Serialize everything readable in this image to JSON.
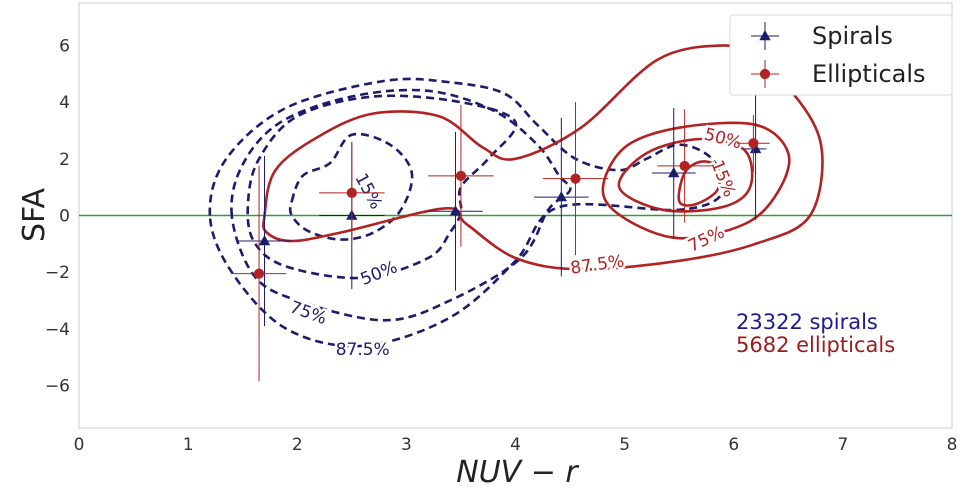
{
  "chart_data": {
    "type": "scatter",
    "xlabel": "NUV − r",
    "ylabel": "SFA",
    "xlim": [
      0,
      8
    ],
    "ylim": [
      -7.5,
      7.5
    ],
    "xticks": [
      "0",
      "1",
      "2",
      "3",
      "4",
      "5",
      "6",
      "7",
      "8"
    ],
    "yticks": [
      "−6",
      "−4",
      "−2",
      "0",
      "2",
      "4",
      "6"
    ],
    "grid": false,
    "reference_line": {
      "y": 0,
      "color": "#3a9a3a"
    },
    "legend": {
      "position": "top-right",
      "entries": [
        {
          "label": "Spirals",
          "color": "#1c1c6b",
          "marker": "triangle"
        },
        {
          "label": "Ellipticals",
          "color": "#b22222",
          "marker": "circle"
        }
      ]
    },
    "series": [
      {
        "name": "Spirals",
        "color": "#1c1c6b",
        "marker": "triangle",
        "points": [
          {
            "x": 1.7,
            "y": -0.9,
            "xerr": 0.25,
            "yerr": 3.0
          },
          {
            "x": 2.5,
            "y": 0.0,
            "xerr": 0.3,
            "yerr": 2.6
          },
          {
            "x": 3.45,
            "y": 0.15,
            "xerr": 0.25,
            "yerr": 2.8
          },
          {
            "x": 4.42,
            "y": 0.65,
            "xerr": 0.25,
            "yerr": 2.8
          },
          {
            "x": 5.45,
            "y": 1.5,
            "xerr": 0.2,
            "yerr": 2.3
          },
          {
            "x": 6.2,
            "y": 2.35,
            "xerr": 0.1,
            "yerr": 2.5
          }
        ]
      },
      {
        "name": "Ellipticals",
        "color": "#b22222",
        "marker": "circle",
        "points": [
          {
            "x": 1.65,
            "y": -2.05,
            "xerr": 0.25,
            "yerr": 3.8
          },
          {
            "x": 2.5,
            "y": 0.8,
            "xerr": 0.3,
            "yerr": 1.7
          },
          {
            "x": 3.5,
            "y": 1.4,
            "xerr": 0.3,
            "yerr": 2.5
          },
          {
            "x": 4.55,
            "y": 1.3,
            "xerr": 0.3,
            "yerr": 2.7
          },
          {
            "x": 5.55,
            "y": 1.75,
            "xerr": 0.25,
            "yerr": 2.0
          },
          {
            "x": 6.18,
            "y": 2.55,
            "xerr": 0.15,
            "yerr": 1.0
          }
        ]
      }
    ],
    "contours": [
      {
        "set": "Spirals",
        "label": "15%",
        "color": "#1c1c6b",
        "dashed": true,
        "label_pos": {
          "x": 2.65,
          "y": 0.85,
          "angle": 62
        },
        "points": [
          [
            1.95,
            0.5
          ],
          [
            2.05,
            1.4
          ],
          [
            2.3,
            1.85
          ],
          [
            2.5,
            2.85
          ],
          [
            2.85,
            2.5
          ],
          [
            3.05,
            1.5
          ],
          [
            2.95,
            0.2
          ],
          [
            2.7,
            -0.6
          ],
          [
            2.4,
            -0.85
          ],
          [
            2.1,
            -0.55
          ],
          [
            1.95,
            0.0
          ]
        ]
      },
      {
        "set": "Spirals",
        "label": "50%",
        "color": "#1c1c6b",
        "dashed": true,
        "label_pos": {
          "x": 2.75,
          "y": -2.05,
          "angle": -22
        },
        "points": [
          [
            1.55,
            0.5
          ],
          [
            1.65,
            2.0
          ],
          [
            2.0,
            3.5
          ],
          [
            2.7,
            4.2
          ],
          [
            3.5,
            4.0
          ],
          [
            4.0,
            3.3
          ],
          [
            3.75,
            2.0
          ],
          [
            3.5,
            1.0
          ],
          [
            3.5,
            0.1
          ],
          [
            3.4,
            -0.6
          ],
          [
            3.2,
            -1.5
          ],
          [
            2.6,
            -2.2
          ],
          [
            1.9,
            -1.8
          ],
          [
            1.6,
            -0.9
          ]
        ]
      },
      {
        "set": "Spirals",
        "label": "75%",
        "color": "#1c1c6b",
        "dashed": true,
        "label_pos": {
          "x": 2.1,
          "y": -3.45,
          "angle": 20
        },
        "points": [
          [
            1.4,
            0.0
          ],
          [
            1.5,
            1.8
          ],
          [
            1.85,
            3.3
          ],
          [
            2.5,
            4.2
          ],
          [
            3.2,
            4.4
          ],
          [
            3.8,
            3.7
          ],
          [
            4.2,
            2.5
          ],
          [
            4.4,
            1.4
          ],
          [
            4.5,
            0.9
          ],
          [
            4.3,
            0.2
          ],
          [
            4.05,
            -1.5
          ],
          [
            3.4,
            -3.0
          ],
          [
            2.8,
            -3.7
          ],
          [
            2.0,
            -3.0
          ],
          [
            1.6,
            -2.1
          ]
        ]
      },
      {
        "set": "Spirals",
        "label": "87.5%",
        "color": "#1c1c6b",
        "dashed": true,
        "label_pos": {
          "x": 2.6,
          "y": -4.75,
          "angle": 0
        },
        "points": [
          [
            1.2,
            0.0
          ],
          [
            1.35,
            2.0
          ],
          [
            1.9,
            3.8
          ],
          [
            2.8,
            4.75
          ],
          [
            3.4,
            4.7
          ],
          [
            3.9,
            4.3
          ],
          [
            4.2,
            3.2
          ],
          [
            4.55,
            2.0
          ],
          [
            4.95,
            1.6
          ],
          [
            5.2,
            2.0
          ],
          [
            5.5,
            2.5
          ],
          [
            5.8,
            2.0
          ],
          [
            5.9,
            0.8
          ],
          [
            5.5,
            0.2
          ],
          [
            4.4,
            0.3
          ],
          [
            4.0,
            -1.6
          ],
          [
            3.4,
            -3.6
          ],
          [
            2.6,
            -4.6
          ],
          [
            1.9,
            -4.0
          ],
          [
            1.4,
            -2.0
          ]
        ]
      },
      {
        "set": "Ellipticals",
        "label": "15%",
        "color": "#b22222",
        "dashed": false,
        "label_pos": {
          "x": 5.9,
          "y": 1.3,
          "angle": 68
        },
        "points": [
          [
            5.5,
            0.5
          ],
          [
            5.55,
            1.5
          ],
          [
            5.7,
            1.9
          ],
          [
            5.85,
            1.7
          ],
          [
            5.85,
            0.9
          ],
          [
            5.65,
            0.4
          ]
        ]
      },
      {
        "set": "Ellipticals",
        "label": "50%",
        "color": "#b22222",
        "dashed": false,
        "label_pos": {
          "x": 5.9,
          "y": 2.7,
          "angle": 15
        },
        "points": [
          [
            4.95,
            1.0
          ],
          [
            5.2,
            2.2
          ],
          [
            5.7,
            2.7
          ],
          [
            6.1,
            2.3
          ],
          [
            6.15,
            1.0
          ],
          [
            5.9,
            0.3
          ],
          [
            5.35,
            0.2
          ]
        ]
      },
      {
        "set": "Ellipticals",
        "label": "75%",
        "color": "#b22222",
        "dashed": false,
        "label_pos": {
          "x": 5.75,
          "y": -0.85,
          "angle": -25
        },
        "points": [
          [
            4.8,
            0.9
          ],
          [
            5.0,
            2.4
          ],
          [
            5.5,
            3.1
          ],
          [
            6.2,
            3.2
          ],
          [
            6.5,
            2.2
          ],
          [
            6.4,
            0.8
          ],
          [
            6.1,
            -0.3
          ],
          [
            5.5,
            -0.8
          ],
          [
            5.0,
            -0.1
          ]
        ]
      },
      {
        "set": "Ellipticals",
        "label": "87.5%",
        "color": "#b22222",
        "dashed": false,
        "label_pos": {
          "x": 4.75,
          "y": -1.75,
          "angle": -8
        },
        "points": [
          [
            1.7,
            0.0
          ],
          [
            1.8,
            1.6
          ],
          [
            2.2,
            2.8
          ],
          [
            2.7,
            3.6
          ],
          [
            3.3,
            3.5
          ],
          [
            3.7,
            2.4
          ],
          [
            4.0,
            2.0
          ],
          [
            4.6,
            3.1
          ],
          [
            5.3,
            5.5
          ],
          [
            5.9,
            6.0
          ],
          [
            6.1,
            5.6
          ],
          [
            6.5,
            4.5
          ],
          [
            6.8,
            2.5
          ],
          [
            6.7,
            0.0
          ],
          [
            6.2,
            -1.0
          ],
          [
            5.5,
            -1.6
          ],
          [
            4.6,
            -1.9
          ],
          [
            4.0,
            -1.5
          ],
          [
            3.55,
            -0.3
          ],
          [
            3.35,
            0.25
          ],
          [
            2.4,
            -0.6
          ],
          [
            1.95,
            -0.9
          ],
          [
            1.72,
            -0.6
          ]
        ]
      }
    ],
    "annotations": [
      {
        "text": "23322 spirals",
        "color": "#1c1c8a"
      },
      {
        "text": "5682 ellipticals",
        "color": "#9b1c1c"
      }
    ]
  }
}
